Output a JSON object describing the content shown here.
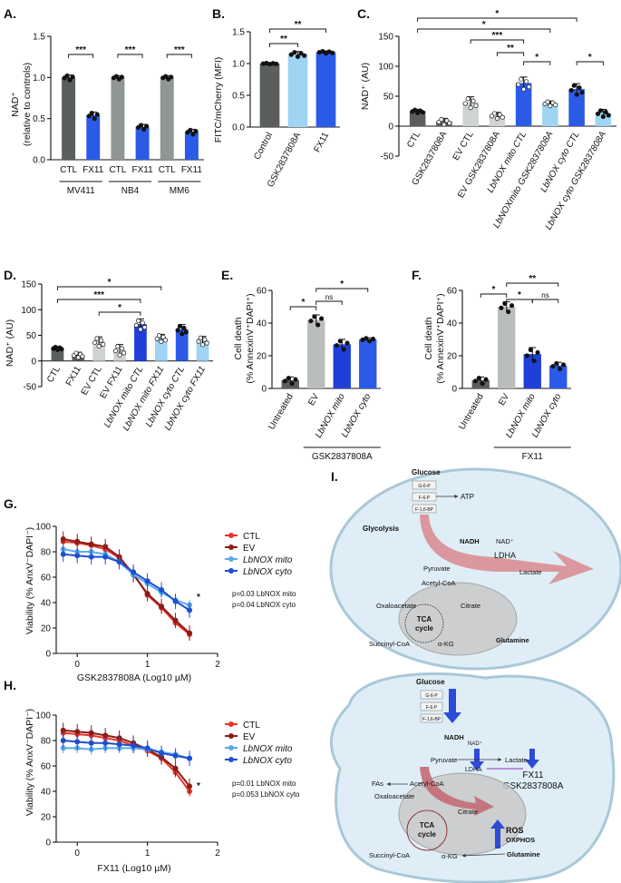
{
  "panels": {
    "A": {
      "label": "A.",
      "ylabel": "NAD⁺",
      "ylabel2": "(relative to controls)",
      "yticks": [
        "0.0",
        "0.5",
        "1.0",
        "1.5"
      ],
      "groups": [
        "MV411",
        "NB4",
        "MM6"
      ],
      "sig": "***"
    },
    "B": {
      "label": "B.",
      "ylabel": "FITC/mCherry (MFI)",
      "yticks": [
        "0.0",
        "0.5",
        "1.0",
        "1.5"
      ],
      "sig": "**"
    },
    "C": {
      "label": "C.",
      "ylabel": "NAD⁺ (AU)",
      "yticks": [
        "-50",
        "0",
        "50",
        "100",
        "150"
      ]
    },
    "D": {
      "label": "D.",
      "ylabel": "NAD⁺ (AU)",
      "yticks": [
        "-50",
        "0",
        "50",
        "100",
        "150"
      ]
    },
    "E": {
      "label": "E.",
      "ylabel": "Cell death",
      "ylabel2": "(% AnnexinV⁺DAPI⁺)",
      "yticks": [
        "0",
        "20",
        "40",
        "60"
      ],
      "group": "GSK2837808A"
    },
    "F": {
      "label": "F.",
      "ylabel": "Cell death",
      "ylabel2": "(% AnnexinV⁺DAPI⁺)",
      "yticks": [
        "0",
        "20",
        "40",
        "60"
      ],
      "group": "FX11"
    },
    "G": {
      "label": "G.",
      "ylabel": "Viability (% AnxV⁻DAPI⁻)",
      "xlabel": "GSK2837808A (Log10 µM)",
      "xticks": [
        "0",
        "1",
        "2"
      ],
      "yticks": [
        "0",
        "20",
        "40",
        "60",
        "80",
        "100"
      ],
      "p1": "p=0.03 LbNOX mito",
      "p2": "p=0.04 LbNOX cyto",
      "sig": "*"
    },
    "H": {
      "label": "H.",
      "ylabel": "Viability (% AnxV⁻DAPI⁻)",
      "xlabel": "FX11 (Log10 µM)",
      "xticks": [
        "0",
        "1",
        "2"
      ],
      "yticks": [
        "0",
        "20",
        "40",
        "60",
        "80",
        "100"
      ],
      "p1": "p=0.01 LbNOX mito",
      "p2": "p=0.053 LbNOX cyto",
      "sig": "*"
    },
    "I": {
      "label": "I."
    }
  },
  "chart_data": [
    {
      "panel": "A",
      "type": "bar",
      "categories": [
        "CTL",
        "FX11",
        "CTL",
        "FX11",
        "CTL",
        "FX11"
      ],
      "groups": [
        "MV411",
        "NB4",
        "MM6"
      ],
      "values": [
        1.0,
        0.54,
        1.0,
        0.4,
        1.0,
        0.34
      ],
      "errors": [
        0.03,
        0.04,
        0.02,
        0.03,
        0.02,
        0.03
      ],
      "colors": [
        "#5a5f5c",
        "#2b5be6",
        "#8e9792",
        "#2b5be6",
        "#8e9792",
        "#2b5be6"
      ],
      "ylim": [
        0,
        1.5
      ]
    },
    {
      "panel": "B",
      "type": "bar",
      "categories": [
        "Control",
        "GSK2837808A",
        "FX11"
      ],
      "values": [
        1.0,
        1.15,
        1.18
      ],
      "errors": [
        0.01,
        0.04,
        0.02
      ],
      "colors": [
        "#5a5f5c",
        "#9fd4f2",
        "#2b5be6"
      ],
      "ylim": [
        0,
        1.5
      ]
    },
    {
      "panel": "C",
      "type": "bar",
      "categories": [
        "CTL",
        "GSK2837808A",
        "EV CTL",
        "EV GSK2837808A",
        "LbNOX mito CTL",
        "LbNOXmito GSK2837808A",
        "LbNOX cyto CTL",
        "LbNOX cyto GSK2837808A"
      ],
      "values": [
        25,
        8,
        40,
        18,
        72,
        38,
        62,
        22
      ],
      "errors": [
        3,
        5,
        9,
        5,
        10,
        4,
        9,
        6
      ],
      "colors": [
        "#5a5f5c",
        "#5a5f5c",
        "#cfd4d2",
        "#cfd4d2",
        "#2b5be6",
        "#9fd4f2",
        "#2b5be6",
        "#9fd4f2"
      ],
      "ylim": [
        -50,
        150
      ]
    },
    {
      "panel": "D",
      "type": "bar",
      "categories": [
        "CTL",
        "FX11",
        "EV CTL",
        "EV FX11",
        "LbNOX mito CTL",
        "LbNOX mito FX11",
        "LbNOX cyto CTL",
        "LbNOX cyto FX11"
      ],
      "values": [
        25,
        12,
        38,
        22,
        72,
        45,
        62,
        40
      ],
      "errors": [
        3,
        5,
        9,
        10,
        10,
        7,
        9,
        8
      ],
      "colors": [
        "#5a5f5c",
        "#5a5f5c",
        "#cfd4d2",
        "#cfd4d2",
        "#1f3fd8",
        "#9fd4f2",
        "#2b5be6",
        "#9fd4f2"
      ],
      "ylim": [
        -50,
        150
      ]
    },
    {
      "panel": "E",
      "type": "bar",
      "categories": [
        "Untreated",
        "EV",
        "LbNOX mito",
        "LbNOX cyto"
      ],
      "values": [
        5,
        42,
        27,
        30
      ],
      "errors": [
        2,
        3,
        3,
        1
      ],
      "colors": [
        "#5a5f5c",
        "#b9bdbb",
        "#1f3fd8",
        "#2b5be6"
      ],
      "ylim": [
        0,
        60
      ]
    },
    {
      "panel": "F",
      "type": "bar",
      "categories": [
        "Untreated",
        "EV",
        "LbNOX mito",
        "LbNOX cyto"
      ],
      "values": [
        5,
        50,
        21,
        14
      ],
      "errors": [
        2,
        3,
        4,
        2
      ],
      "colors": [
        "#5a5f5c",
        "#b9bdbb",
        "#1f3fd8",
        "#2b5be6"
      ],
      "ylim": [
        0,
        60
      ]
    },
    {
      "panel": "G",
      "type": "line",
      "x": [
        -0.2,
        0.0,
        0.2,
        0.4,
        0.6,
        0.8,
        1.0,
        1.2,
        1.4,
        1.6
      ],
      "series": [
        {
          "name": "CTL",
          "color": "#e8332a",
          "values": [
            88,
            87,
            85,
            82,
            75,
            63,
            46,
            36,
            24,
            15
          ]
        },
        {
          "name": "EV",
          "color": "#8b1c16",
          "values": [
            90,
            88,
            86,
            84,
            76,
            62,
            47,
            37,
            26,
            16
          ]
        },
        {
          "name": "LbNOX mito",
          "color": "#5aa9ee",
          "values": [
            82,
            80,
            80,
            78,
            72,
            62,
            55,
            48,
            42,
            38
          ]
        },
        {
          "name": "LbNOX cyto",
          "color": "#1f4fd1",
          "values": [
            78,
            77,
            76,
            76,
            72,
            64,
            57,
            50,
            41,
            34
          ]
        }
      ],
      "xlim": [
        -0.3,
        2.0
      ],
      "ylim": [
        0,
        100
      ]
    },
    {
      "panel": "H",
      "type": "line",
      "x": [
        -0.2,
        0.0,
        0.2,
        0.4,
        0.6,
        0.8,
        1.0,
        1.2,
        1.4,
        1.6
      ],
      "series": [
        {
          "name": "CTL",
          "color": "#e8332a",
          "values": [
            86,
            85,
            84,
            82,
            80,
            76,
            72,
            66,
            55,
            40
          ]
        },
        {
          "name": "EV",
          "color": "#8b1c16",
          "values": [
            88,
            87,
            86,
            84,
            82,
            78,
            73,
            67,
            58,
            44
          ]
        },
        {
          "name": "LbNOX mito",
          "color": "#5aa9ee",
          "values": [
            74,
            74,
            73,
            74,
            74,
            74,
            73,
            71,
            69,
            66
          ]
        },
        {
          "name": "LbNOX cyto",
          "color": "#1f4fd1",
          "values": [
            80,
            79,
            78,
            78,
            77,
            76,
            74,
            70,
            68,
            66
          ]
        }
      ],
      "xlim": [
        -0.3,
        2.0
      ],
      "ylim": [
        0,
        100
      ]
    }
  ],
  "diagram": {
    "top": {
      "glucose": "Glucose",
      "g6p": "G-6-P",
      "f6p": "F-6-P",
      "f16bp": "F-1,6-BP",
      "atp": "ATP",
      "glycolysis": "Glycolysis",
      "nadh": "NADH",
      "nad": "NAD⁺",
      "ldha": "LDHA",
      "pyruvate": "Pyruvate",
      "lactate": "Lactate",
      "acetylcoa": "Acetyl-CoA",
      "oxaloacetate": "Oxaloacetate",
      "citrate": "Citrate",
      "tca": "TCA",
      "cycle": "cycle",
      "succinyl": "Succinyl-CoA",
      "akg": "α-KG",
      "glutamine": "Glutamine"
    },
    "bottom": {
      "glucose": "Glucose",
      "g6p": "G-6-P",
      "f6p": "F-6-P",
      "f16bp": "F-1,6-BP",
      "nadh": "NADH",
      "nad": "NAD⁺",
      "pyruvate": "Pyruvate",
      "lactate": "Lactate",
      "ldha": "LDHA",
      "fx11": "FX11",
      "gsk": "GSK2837808A",
      "fas": "FAs",
      "acetylcoa": "Acetyl-CoA",
      "oxaloacetate": "Oxaloacetate",
      "citrate": "Citrate",
      "tca": "TCA",
      "cycle": "cycle",
      "ros": "ROS",
      "oxphos": "OXPHOS",
      "succinyl": "Succinyl-CoA",
      "akg": "α-KG",
      "glutamine": "Glutamine"
    }
  }
}
